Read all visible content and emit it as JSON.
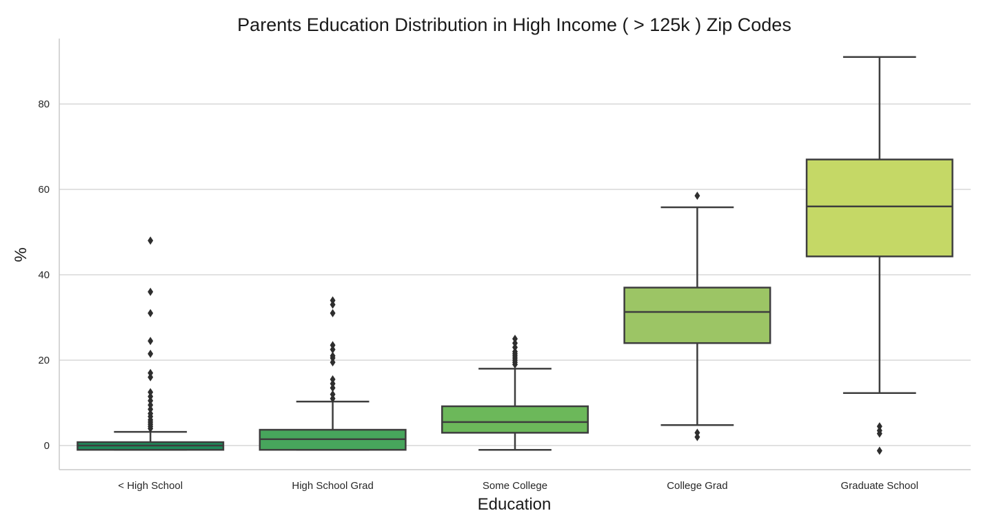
{
  "chart_data": {
    "type": "box",
    "title": "Parents Education Distribution in High Income ( > 125k ) Zip Codes",
    "xlabel": "Education",
    "ylabel": "%",
    "ylim": [
      -5.5,
      95
    ],
    "yticks": [
      0,
      20,
      40,
      60,
      80
    ],
    "grid": "horizontal",
    "categories": [
      "< High School",
      "High School Grad",
      "Some College",
      "College Grad",
      "Graduate School"
    ],
    "colors": [
      "#1f8a5a",
      "#47a55c",
      "#6cb85a",
      "#9cc565",
      "#c5d866"
    ],
    "boxes": [
      {
        "category": "< High School",
        "whisker_low": -1.0,
        "q1": -1.0,
        "median": 0.0,
        "q3": 0.8,
        "whisker_high": 3.2,
        "outliers": [
          4.0,
          4.5,
          5.0,
          5.5,
          6.0,
          6.8,
          7.5,
          8.5,
          9.5,
          10.5,
          11.5,
          12.5,
          16.0,
          17.0,
          21.5,
          24.5,
          31.0,
          36.0,
          48.0
        ]
      },
      {
        "category": "High School Grad",
        "whisker_low": -1.0,
        "q1": -1.0,
        "median": 1.5,
        "q3": 3.7,
        "whisker_high": 10.3,
        "outliers": [
          11.0,
          12.0,
          13.5,
          14.5,
          15.5,
          19.5,
          20.5,
          21.0,
          22.5,
          23.5,
          31.0,
          33.0,
          34.0
        ]
      },
      {
        "category": "Some College",
        "whisker_low": -1.0,
        "q1": 3.0,
        "median": 5.5,
        "q3": 9.2,
        "whisker_high": 18.0,
        "outliers": [
          19.0,
          19.5,
          20.0,
          20.5,
          21.0,
          21.5,
          22.0,
          23.0,
          24.0,
          25.0
        ]
      },
      {
        "category": "College Grad",
        "whisker_low": 4.8,
        "q1": 24.0,
        "median": 31.3,
        "q3": 37.0,
        "whisker_high": 55.8,
        "outliers": [
          2.0,
          3.0,
          58.5
        ]
      },
      {
        "category": "Graduate School",
        "whisker_low": 12.3,
        "q1": 44.3,
        "median": 56.0,
        "q3": 67.0,
        "whisker_high": 91.0,
        "outliers": [
          -1.2,
          2.8,
          3.5,
          4.5
        ]
      }
    ]
  }
}
